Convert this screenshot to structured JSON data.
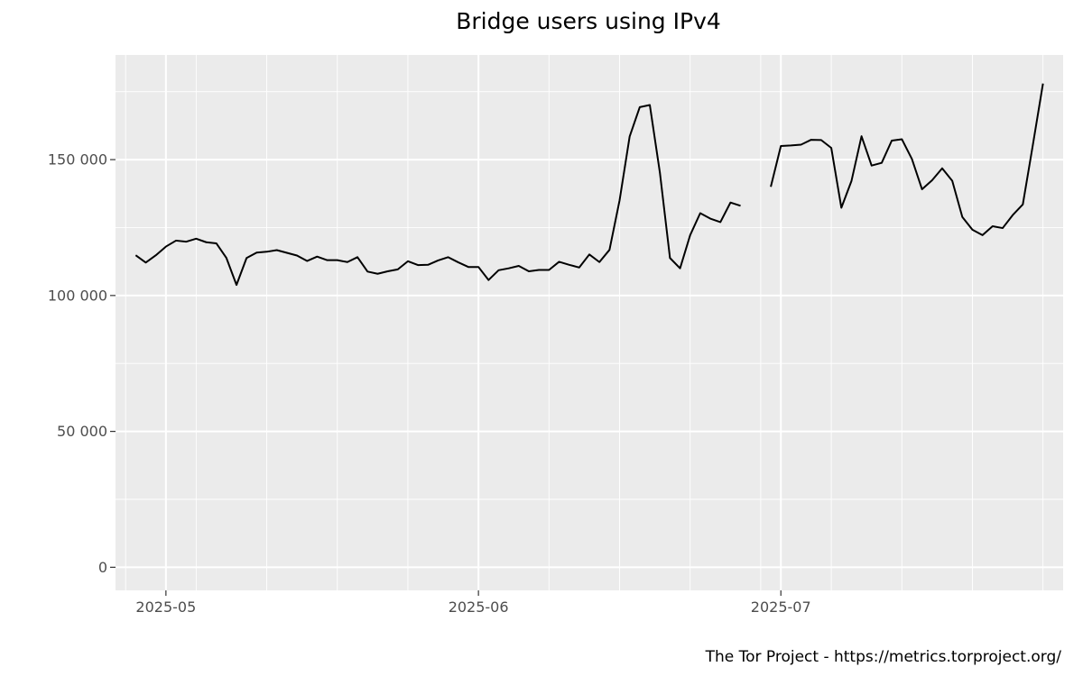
{
  "chart_data": {
    "type": "line",
    "title": "Bridge users using IPv4",
    "xlabel": "",
    "ylabel": "",
    "caption": "The Tor Project - https://metrics.torproject.org/",
    "x_type": "date",
    "xlim": [
      "2025-04-26",
      "2025-07-29"
    ],
    "ylim": [
      -8500,
      188500
    ],
    "grid": true,
    "legend": "none",
    "x_ticks": [
      {
        "value": "2025-05-01",
        "label": "2025-05"
      },
      {
        "value": "2025-06-01",
        "label": "2025-06"
      },
      {
        "value": "2025-07-01",
        "label": "2025-07"
      }
    ],
    "x_minor_gridlines": [
      "2025-04-27",
      "2025-05-04",
      "2025-05-11",
      "2025-05-18",
      "2025-05-25",
      "2025-06-08",
      "2025-06-15",
      "2025-06-22",
      "2025-06-29",
      "2025-07-06",
      "2025-07-13",
      "2025-07-20",
      "2025-07-27"
    ],
    "y_ticks": [
      {
        "value": 0,
        "label": "0"
      },
      {
        "value": 50000,
        "label": "50 000"
      },
      {
        "value": 100000,
        "label": "100 000"
      },
      {
        "value": 150000,
        "label": "150 000"
      }
    ],
    "y_minor_gridlines": [
      25000,
      75000,
      125000,
      175000
    ],
    "colors": {
      "line": "#000000",
      "panel": "#ebebeb",
      "grid": "#ffffff"
    },
    "series": [
      {
        "start_date": "2025-04-28",
        "values": [
          114800,
          112100,
          114800,
          118000,
          120200,
          119800,
          120900,
          119600,
          119200,
          113800,
          103900,
          113800,
          115800,
          116100,
          116700,
          115700,
          114700,
          112700,
          114300,
          113000,
          113000,
          112300,
          114100,
          108800,
          108000,
          108900,
          109600,
          112600,
          111200,
          111300,
          112900,
          114100,
          112200,
          110500,
          110500,
          105700,
          109300,
          110000,
          110900,
          108900,
          109400,
          109400,
          112400,
          111300,
          110300,
          115100,
          112300,
          116800,
          135000,
          158500,
          169300,
          170100,
          145200,
          113800,
          110000,
          122200,
          130300,
          128300,
          127000,
          134200,
          133000
        ]
      },
      {
        "start_date": "2025-06-30",
        "values": [
          140000,
          155000,
          155200,
          155500,
          157300,
          157200,
          154300,
          132300,
          142100,
          158600,
          147800,
          148800,
          157000,
          157500,
          150200,
          139100,
          142400,
          146800,
          142200,
          128900,
          124200,
          122200,
          125500,
          124800,
          129600,
          133500,
          155500,
          178000
        ]
      }
    ]
  }
}
